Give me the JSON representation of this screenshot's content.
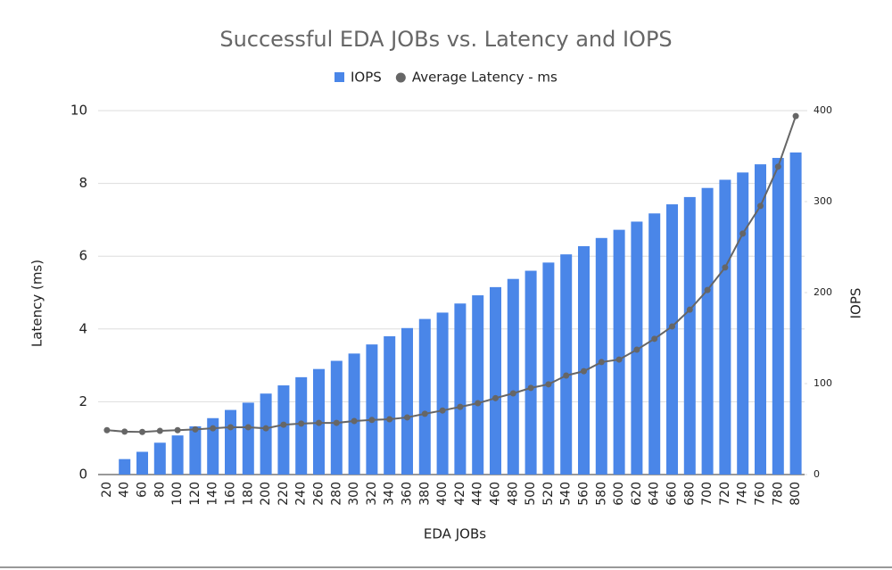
{
  "chart_data": {
    "type": "combo",
    "title": "Successful EDA JOBs vs. Latency and IOPS",
    "x_label": "EDA JOBs",
    "y_label": "Latency (ms)",
    "y2_label": "IOPS",
    "categories": [
      20,
      40,
      60,
      80,
      100,
      120,
      140,
      160,
      180,
      200,
      220,
      240,
      260,
      280,
      300,
      320,
      340,
      360,
      380,
      400,
      420,
      440,
      460,
      480,
      500,
      520,
      540,
      560,
      580,
      600,
      620,
      640,
      660,
      680,
      700,
      720,
      740,
      760,
      780,
      800
    ],
    "series": [
      {
        "name": "IOPS",
        "type": "bar",
        "axis": "y2",
        "color": "#4a86e8",
        "values": [
          0,
          17,
          25,
          35,
          43,
          53,
          62,
          71,
          79,
          89,
          98,
          107,
          116,
          125,
          133,
          143,
          152,
          161,
          171,
          178,
          188,
          197,
          206,
          215,
          224,
          233,
          242,
          251,
          260,
          269,
          278,
          287,
          297,
          305,
          315,
          324,
          332,
          341,
          348,
          354
        ]
      },
      {
        "name": "Average Latency - ms",
        "type": "line",
        "axis": "y",
        "color": "#666666",
        "values": [
          1.22,
          1.18,
          1.17,
          1.2,
          1.22,
          1.24,
          1.27,
          1.3,
          1.3,
          1.27,
          1.37,
          1.4,
          1.42,
          1.42,
          1.47,
          1.5,
          1.52,
          1.57,
          1.67,
          1.76,
          1.86,
          1.96,
          2.1,
          2.23,
          2.38,
          2.48,
          2.72,
          2.84,
          3.09,
          3.16,
          3.43,
          3.73,
          4.07,
          4.53,
          5.07,
          5.69,
          6.62,
          7.38,
          8.46,
          9.85
        ]
      }
    ],
    "ylim": [
      0,
      10
    ],
    "yticks": [
      0,
      2,
      4,
      6,
      8,
      10
    ],
    "y2lim": [
      0,
      400
    ],
    "y2ticks": [
      0,
      100,
      200,
      300,
      400
    ],
    "grid": true,
    "legend": "top"
  }
}
